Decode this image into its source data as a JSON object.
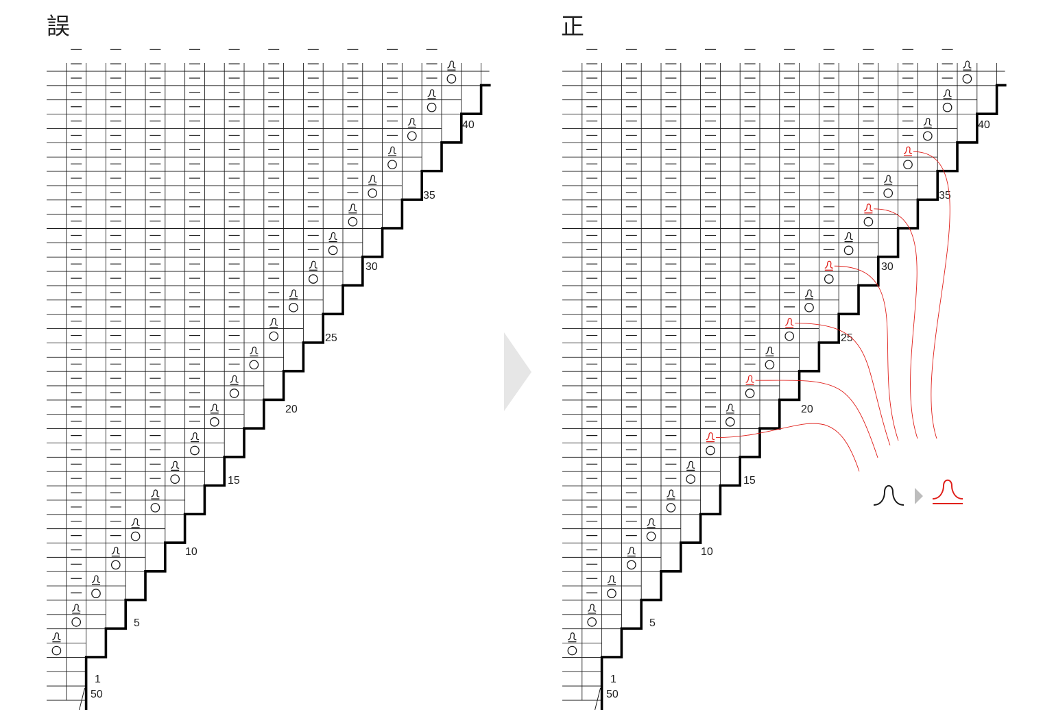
{
  "titles": {
    "wrong": "誤",
    "correct": "正"
  },
  "row_markers": [
    "1",
    "5",
    "10",
    "15",
    "20",
    "25",
    "30",
    "35",
    "40"
  ],
  "stitch_markers": [
    "50"
  ],
  "legend": {
    "before_symbol": "twisted-loop-symbol",
    "after_symbol": "underlined-twisted-loop-symbol"
  },
  "colors": {
    "ink": "#1a1a1a",
    "correction": "#e0201b",
    "arrow": "#e6e6e6"
  }
}
